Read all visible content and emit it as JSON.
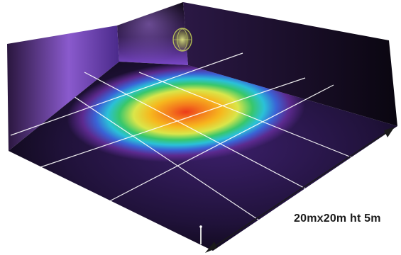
{
  "room": {
    "dimension_label": "20mx20m ht 5m"
  },
  "visualization": {
    "floor_grid_divisions": 4,
    "colormap": [
      "#120c20",
      "#5c2a8f",
      "#3a63d6",
      "#2ac1d8",
      "#38c76b",
      "#d9e64a",
      "#f6a21e",
      "#ec3b1a"
    ]
  }
}
